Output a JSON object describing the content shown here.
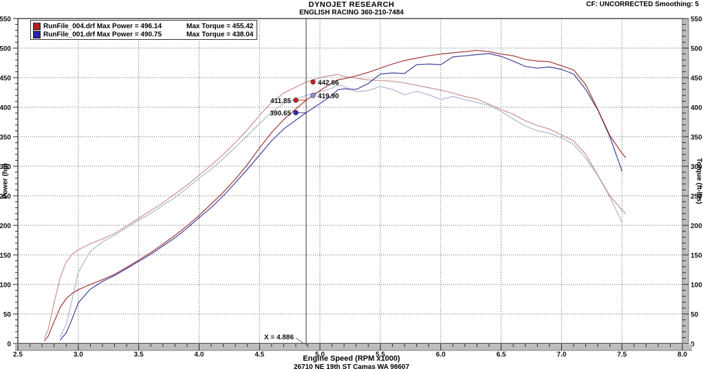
{
  "header": {
    "title": "DYNOJET RESEARCH",
    "subtitle": "ENGLISH RACING 360-210-7484",
    "correction": "CF: UNCORRECTED  Smoothing: 5"
  },
  "footer": {
    "xlabel": "Engine Speed (RPM x1000)",
    "address": "26710 NE 19th ST Camas WA 98607"
  },
  "axes": {
    "left_label": "Power (hp)",
    "right_label": "Torque (ft-lbs)",
    "x_min": 2.5,
    "x_max": 8.0,
    "x_major": 0.5,
    "x_minor": 0.1,
    "y_min": 0,
    "y_max": 550,
    "y_major": 50,
    "y_minor": 10
  },
  "legend": {
    "max_power_label": "Max Power =",
    "max_torque_label": "Max Torque =",
    "runs": [
      {
        "file": "RunFile_004.drf",
        "max_power": "496.14",
        "max_torque": "455.42",
        "swatch_color": "#b51c1c"
      },
      {
        "file": "RunFile_001.drf",
        "max_power": "490.75",
        "max_torque": "438.04",
        "swatch_color": "#2424b0"
      }
    ]
  },
  "cursor": {
    "x": 4.886,
    "label": "X = 4.886",
    "readouts": [
      {
        "value": "442.66",
        "series": "red_torque",
        "dot_color": "#c81e1e",
        "side": "right"
      },
      {
        "value": "419.90",
        "series": "blue_torque",
        "dot_color": "#9494d8",
        "side": "right"
      },
      {
        "value": "411.85",
        "series": "red_power",
        "dot_color": "#c81e1e",
        "side": "left"
      },
      {
        "value": "390.65",
        "series": "blue_power",
        "dot_color": "#2a2ab4",
        "side": "left"
      }
    ]
  },
  "chart_data": {
    "type": "line",
    "title": "DYNOJET RESEARCH",
    "subtitle": "ENGLISH RACING 360-210-7484",
    "xlabel": "Engine Speed (RPM x1000)",
    "ylabel_left": "Power (hp)",
    "ylabel_right": "Torque (ft-lbs)",
    "xlim": [
      2.5,
      8.0
    ],
    "ylim": [
      0,
      550
    ],
    "grid": true,
    "legend_position": "top-left",
    "x": [
      2.72,
      2.75,
      2.8,
      2.85,
      2.9,
      2.95,
      3.0,
      3.1,
      3.2,
      3.3,
      3.4,
      3.5,
      3.6,
      3.7,
      3.8,
      3.9,
      4.0,
      4.1,
      4.2,
      4.3,
      4.4,
      4.5,
      4.6,
      4.7,
      4.8,
      4.886,
      5.0,
      5.1,
      5.15,
      5.2,
      5.3,
      5.4,
      5.5,
      5.6,
      5.7,
      5.8,
      5.9,
      6.0,
      6.1,
      6.2,
      6.3,
      6.4,
      6.5,
      6.6,
      6.7,
      6.8,
      6.9,
      7.0,
      7.1,
      7.2,
      7.3,
      7.4,
      7.5,
      7.53
    ],
    "series": [
      {
        "id": "blue_torque",
        "run": "RunFile_001.drf",
        "quantity": "torque_ftlbs",
        "axis": "right",
        "color": "#a9b6cf",
        "values": [
          null,
          null,
          null,
          11,
          33,
          75,
          121,
          156,
          172,
          183,
          196,
          209,
          220,
          234,
          247,
          263,
          280,
          295,
          313,
          332,
          352,
          372,
          392,
          406,
          414,
          419.9,
          426,
          432,
          438.04,
          435,
          426,
          428,
          435,
          430,
          421,
          427,
          421,
          413,
          418,
          413,
          408,
          403,
          393,
          380,
          368,
          360,
          356,
          348,
          337,
          314,
          284,
          248,
          205,
          null
        ]
      },
      {
        "id": "red_torque",
        "run": "RunFile_004.drf",
        "quantity": "torque_ftlbs",
        "axis": "right",
        "color": "#c98f8f",
        "values": [
          10,
          23,
          69,
          112,
          138,
          151,
          159,
          169,
          177,
          186,
          199,
          212,
          225,
          238,
          253,
          268,
          285,
          302,
          320,
          340,
          362,
          386,
          408,
          424,
          434,
          442.66,
          450,
          454,
          455.42,
          452,
          449,
          446,
          445,
          444,
          441,
          437,
          433,
          429,
          424,
          418,
          414,
          405,
          396,
          388,
          377,
          369,
          363,
          353,
          343,
          320,
          285,
          250,
          226,
          220
        ]
      },
      {
        "id": "blue_power",
        "run": "RunFile_001.drf",
        "quantity": "power_hp",
        "axis": "left",
        "color": "#3d3d99",
        "values": [
          null,
          null,
          null,
          6,
          18,
          42,
          69,
          92,
          105,
          115,
          127,
          139,
          151,
          165,
          179,
          195,
          213,
          230,
          250,
          272,
          295,
          319,
          343,
          363,
          378,
          390.65,
          406,
          420,
          429.5,
          431,
          430,
          440,
          456,
          458,
          457,
          472,
          473,
          472,
          485,
          487,
          489,
          490.75,
          486,
          478,
          469,
          466,
          468,
          464,
          456,
          430,
          395,
          350,
          292,
          null
        ]
      },
      {
        "id": "red_power",
        "run": "RunFile_004.drf",
        "quantity": "power_hp",
        "axis": "left",
        "color": "#9e3434",
        "values": [
          5,
          12,
          37,
          61,
          76,
          85,
          91,
          100,
          108,
          117,
          129,
          141,
          154,
          168,
          183,
          199,
          217,
          236,
          256,
          278,
          303,
          331,
          357,
          379,
          397,
          411.85,
          428,
          441,
          446.5,
          448,
          453,
          459,
          466,
          473,
          479,
          483,
          487,
          490,
          492,
          494,
          496.14,
          494,
          490,
          487,
          481,
          478,
          477,
          470,
          463,
          438,
          396,
          352,
          322,
          315
        ]
      }
    ]
  },
  "colors": {
    "grid": "#5e5e5e",
    "frame": "#1a1a1a",
    "cursor_line": "#3a3a3a",
    "strip_fill": "#bdbdbd",
    "strip_highlight": "#ececec",
    "strip_shadow": "#7a7a7a",
    "tick": "#222222",
    "text": "#111111"
  }
}
